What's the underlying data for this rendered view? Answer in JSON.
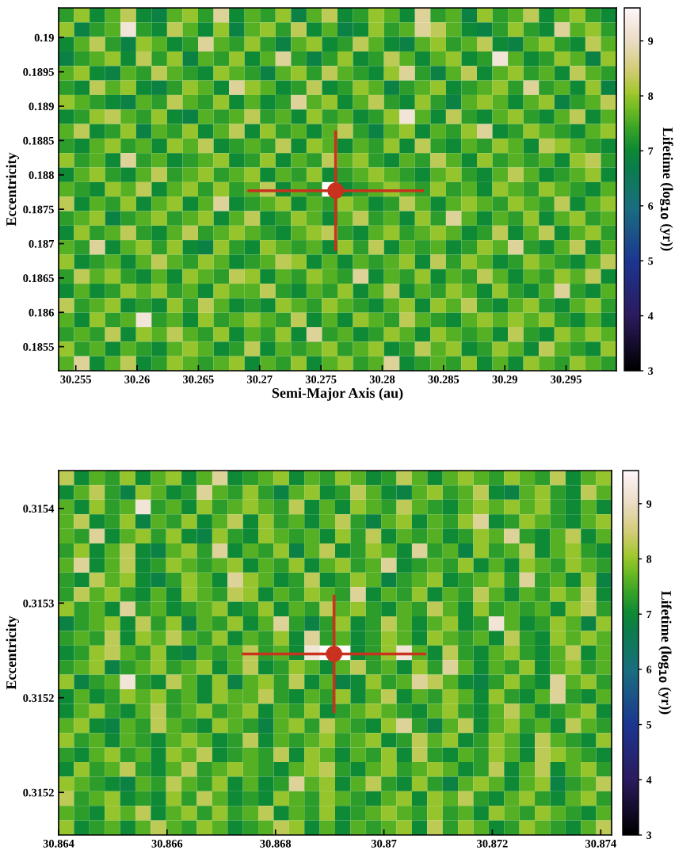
{
  "chart_data": [
    {
      "type": "heatmap",
      "xlabel": "Semi-Major Axis (au)",
      "ylabel": "Eccentricity",
      "clabel": "Lifetime (log$_{10}$ (yr))",
      "xlim": [
        30.2536,
        30.2991
      ],
      "xticks": [
        30.255,
        30.26,
        30.265,
        30.27,
        30.275,
        30.28,
        30.285,
        30.29,
        30.295
      ],
      "ylim": [
        0.18515,
        0.19043
      ],
      "yticks": [
        0.1855,
        0.186,
        0.1865,
        0.187,
        0.1875,
        0.188,
        0.1885,
        0.189,
        0.1895,
        0.19
      ],
      "clim": [
        3,
        9.6
      ],
      "cticks": [
        3,
        4,
        5,
        6,
        7,
        8,
        9
      ],
      "series": [
        {
          "type": "scatter",
          "marker": "circle",
          "color": "#c8321e",
          "x": [
            30.2762
          ],
          "values": [
            0.18777
          ],
          "xerrors": [
            0.0072
          ],
          "errors": [
            0.00088
          ]
        }
      ],
      "cells": [
        [
          7.3,
          8,
          7,
          7.6,
          8.3,
          7,
          6.8,
          7.6,
          8,
          7.3,
          8.7,
          7,
          7.6,
          7.3,
          8,
          6.8,
          7.6,
          8.3,
          7,
          7.3,
          8,
          7.6,
          7,
          8.7,
          7.3,
          7.6,
          6.8,
          8,
          7.3,
          7.6,
          8.3,
          7,
          7.6,
          8,
          7.3,
          7
        ],
        [
          8,
          6.8,
          7.3,
          7.6,
          9.2,
          7.3,
          7,
          8.3,
          7.6,
          7,
          8,
          6.8,
          7.6,
          8,
          7.3,
          8.3,
          7,
          7.6,
          6.8,
          7,
          8,
          7.3,
          7.6,
          8.7,
          8.3,
          7.6,
          7,
          6.8,
          7.3,
          8,
          7.3,
          7,
          8.7,
          7.6,
          8,
          7.3
        ],
        [
          7,
          7.6,
          8.3,
          7.3,
          6.8,
          8,
          7.6,
          7,
          7.3,
          8.7,
          7.6,
          7.3,
          8,
          7.3,
          6.8,
          7.6,
          8,
          7,
          7.3,
          8.3,
          7.6,
          7,
          6.8,
          7.6,
          8,
          7.3,
          7.6,
          8.3,
          7,
          6.8,
          7.6,
          8,
          7.3,
          7,
          8.3,
          7.6
        ],
        [
          6.8,
          7.3,
          7.6,
          8,
          7,
          8.3,
          7.3,
          8,
          6.8,
          7.6,
          7.3,
          8,
          7,
          7.6,
          8.7,
          7.3,
          6.8,
          7.3,
          8,
          7,
          7.3,
          8.3,
          7.6,
          7,
          7.6,
          8,
          7,
          7.3,
          9.2,
          7.6,
          7,
          7.3,
          8,
          7.6,
          6.8,
          8
        ],
        [
          7.6,
          8,
          7,
          6.8,
          7.6,
          7.3,
          8.3,
          7.6,
          7.3,
          7,
          8,
          7.6,
          7.3,
          6.8,
          7.6,
          8,
          7.3,
          8.3,
          7.6,
          7.3,
          7,
          8,
          8.7,
          7.3,
          6.8,
          7.6,
          8.3,
          7,
          7.6,
          8,
          7.3,
          7.6,
          7,
          8.3,
          7.6,
          7.3
        ],
        [
          7.3,
          7,
          8.3,
          7.6,
          8,
          7,
          6.8,
          7.3,
          8,
          7.6,
          7,
          8.7,
          8,
          7.6,
          7,
          7.3,
          8.3,
          7,
          7.3,
          8,
          7.6,
          6.8,
          7.3,
          7.6,
          8,
          7,
          7.3,
          7.6,
          8,
          7.3,
          8.7,
          7.3,
          7.6,
          7,
          8,
          6.8
        ],
        [
          8,
          7.6,
          7.3,
          7,
          6.8,
          7.6,
          7.3,
          8.3,
          7.6,
          7.3,
          8,
          7,
          7.6,
          7,
          7.3,
          8.7,
          7.6,
          8,
          7,
          7.6,
          8.3,
          7.3,
          7,
          8,
          7.3,
          6.8,
          7.6,
          8,
          7.6,
          7,
          7.6,
          8,
          6.8,
          7.3,
          7.6,
          8.3
        ],
        [
          7,
          7.3,
          8,
          8.3,
          7.6,
          7.3,
          8,
          7,
          6.8,
          7.6,
          7.3,
          7.6,
          8.3,
          7.3,
          7.6,
          7,
          8,
          7.3,
          7.6,
          7,
          7.3,
          8,
          9.2,
          7.6,
          7,
          8.3,
          7.3,
          7,
          7.6,
          8,
          7.3,
          7,
          7.6,
          8.3,
          7,
          7.6
        ],
        [
          7.6,
          8.3,
          7,
          7.3,
          8,
          6.8,
          7.6,
          7.3,
          8,
          7,
          7.6,
          8.3,
          7,
          8,
          7.3,
          7.6,
          7,
          7.6,
          8.3,
          7.3,
          6.8,
          7.6,
          8,
          7,
          7.6,
          7.3,
          8,
          8.7,
          7,
          7.3,
          8,
          7.6,
          7.3,
          7,
          7.6,
          8
        ],
        [
          7.3,
          7,
          7.6,
          8,
          7.3,
          7.6,
          7,
          8,
          7.6,
          8.3,
          7,
          7.3,
          7.6,
          7.3,
          8.3,
          7,
          8,
          7.6,
          7,
          7.6,
          7.3,
          8,
          7,
          8.3,
          7.3,
          7,
          7.6,
          7.3,
          8,
          7.6,
          7,
          8.3,
          8,
          7.6,
          7.3,
          7
        ],
        [
          8,
          7.3,
          7.6,
          7,
          8.7,
          7.3,
          7.6,
          7,
          7.3,
          7.6,
          8,
          7,
          7.3,
          8,
          7,
          7.6,
          7.3,
          8.3,
          7.6,
          8,
          7.3,
          7,
          7.6,
          7.3,
          8.3,
          7.6,
          7,
          8,
          7.3,
          7.6,
          7.3,
          7.6,
          7,
          8,
          8.3,
          7.3
        ],
        [
          7,
          7.6,
          8,
          7.3,
          7,
          7.6,
          8.3,
          7.3,
          7.6,
          8,
          7.3,
          7.6,
          8,
          7,
          7.6,
          7.3,
          8,
          7,
          7.3,
          7.6,
          8,
          7.6,
          7.3,
          7,
          7.6,
          8,
          7.3,
          7,
          7.6,
          8.3,
          7.6,
          7,
          7.3,
          7.6,
          8,
          7
        ],
        [
          7.6,
          7.3,
          7,
          8,
          7.6,
          8.3,
          7,
          7.6,
          8,
          7.3,
          8,
          7.3,
          7.6,
          8.3,
          7,
          7.6,
          7.3,
          null,
          7,
          7.3,
          7.6,
          8,
          7.6,
          7.3,
          8,
          7.3,
          7.6,
          7,
          8,
          7.6,
          7.3,
          8,
          7.6,
          7.3,
          7,
          7.6
        ],
        [
          8.3,
          7,
          7.6,
          7.3,
          8,
          7,
          7.6,
          8,
          7,
          7.6,
          8.7,
          7,
          7.3,
          7.6,
          8,
          7,
          7.6,
          7.3,
          8,
          7.6,
          7,
          7.3,
          8.3,
          7.6,
          7,
          7.6,
          8,
          7.6,
          7.3,
          8,
          7.6,
          7.3,
          8.3,
          7,
          7.6,
          8
        ],
        [
          7.3,
          7.6,
          8,
          6.8,
          7.3,
          7.6,
          8,
          7.3,
          7.6,
          8,
          7,
          7.6,
          8.3,
          7,
          7.3,
          8,
          7.6,
          7,
          7.6,
          8.3,
          7.3,
          7.6,
          7,
          8,
          7.3,
          8.7,
          7.6,
          7,
          7.6,
          7.3,
          8,
          7,
          7.6,
          8,
          7.3,
          7.6
        ],
        [
          7,
          8,
          7.3,
          7.6,
          8.3,
          7.3,
          7,
          7.6,
          8.3,
          7.3,
          7.6,
          8,
          7.6,
          7.3,
          7,
          7.6,
          8,
          8.3,
          7.3,
          7,
          7.6,
          8,
          7.3,
          7.6,
          8,
          7.6,
          7,
          7.3,
          8.3,
          7,
          7.6,
          8.3,
          7,
          7.6,
          8,
          7.3
        ],
        [
          7.6,
          7.3,
          8.7,
          7,
          7.6,
          8,
          7.3,
          8,
          7,
          6.8,
          8,
          7.3,
          7,
          8,
          7.6,
          7.3,
          7.6,
          7,
          8,
          7.3,
          8.3,
          7,
          7.6,
          7.3,
          7.6,
          7,
          7.3,
          8,
          7.6,
          8.7,
          7.3,
          7,
          7.6,
          8.3,
          7,
          7.6
        ],
        [
          8,
          7,
          7.3,
          7.6,
          7,
          7.6,
          8.3,
          7.6,
          7.3,
          8,
          7.6,
          7,
          7.3,
          7.6,
          8.3,
          8,
          7,
          7.6,
          7,
          7.6,
          7.3,
          7.6,
          8,
          7,
          8.3,
          7.3,
          8,
          7.6,
          7,
          7.3,
          8,
          7.6,
          7.3,
          7,
          7.6,
          8.3
        ],
        [
          7.3,
          8.3,
          7.6,
          8,
          7.3,
          7,
          7.6,
          7,
          8,
          7.6,
          7.3,
          8.3,
          8,
          7,
          7.6,
          7.3,
          8,
          7.6,
          7.3,
          8.7,
          7,
          7.6,
          7.3,
          8,
          7,
          7.6,
          7.3,
          8.3,
          7.6,
          7,
          7.6,
          7.3,
          8,
          7.6,
          8.3,
          7
        ],
        [
          7,
          7.6,
          7,
          7.3,
          8,
          7.6,
          8,
          7.3,
          7.6,
          7,
          8,
          7.6,
          7.6,
          8.3,
          7.3,
          7,
          7.6,
          7.3,
          8,
          7,
          7.6,
          8.3,
          7,
          7.6,
          7.3,
          8,
          7.6,
          7,
          8,
          7.3,
          7,
          7.6,
          8.7,
          7.3,
          7,
          7.6
        ],
        [
          8.3,
          7.3,
          7.6,
          8,
          7,
          7.3,
          7,
          8,
          7.3,
          8.3,
          7.6,
          7,
          7.3,
          7,
          8,
          7.6,
          7.3,
          8,
          7.6,
          7.3,
          7,
          7.6,
          8,
          7,
          8,
          7.6,
          8.3,
          7.3,
          7,
          7.6,
          8,
          7.3,
          7,
          7.6,
          8,
          7.3
        ],
        [
          7.6,
          7,
          8,
          7.3,
          7.6,
          9.2,
          7.3,
          7.6,
          7,
          8,
          7.3,
          7.6,
          8,
          7.6,
          7.3,
          8.3,
          7,
          7.6,
          7,
          8,
          7.6,
          7.3,
          8.3,
          7.6,
          7.3,
          7,
          7.6,
          8,
          7.6,
          8,
          7.6,
          8,
          7.3,
          7,
          7.6,
          7
        ],
        [
          7.3,
          7.6,
          7.3,
          8.3,
          7,
          8,
          7.6,
          8.3,
          7.6,
          7.3,
          8,
          7,
          7.6,
          7.3,
          8,
          7,
          8.7,
          7.3,
          7.6,
          7,
          7.3,
          8,
          7.6,
          7,
          8,
          7.6,
          7.3,
          7.6,
          7,
          8.3,
          7.3,
          7,
          8,
          7.6,
          8,
          7.6
        ],
        [
          8,
          7.3,
          7.6,
          7,
          7.6,
          7.3,
          7,
          7.6,
          8,
          7.6,
          7,
          7.3,
          8.3,
          7,
          7.6,
          7.3,
          7.6,
          8,
          7.3,
          7.6,
          8,
          7,
          7.3,
          8.3,
          7.6,
          8,
          7,
          7.3,
          8,
          7.6,
          7,
          8.3,
          7.6,
          7.3,
          7,
          8
        ],
        [
          7.6,
          8.7,
          7,
          7.6,
          8.3,
          7,
          7.3,
          8,
          7.6,
          7.3,
          7.6,
          8,
          7,
          7.6,
          7.3,
          8,
          7,
          7.6,
          8,
          7.3,
          7.6,
          8.7,
          7,
          7.3,
          7.6,
          7.3,
          8,
          7,
          7.6,
          7,
          8,
          7.6,
          7.3,
          8,
          7.6,
          7.3
        ]
      ]
    },
    {
      "type": "heatmap",
      "ylabel": "Eccentricity",
      "clabel": "Lifetime (log$_{10}$ (yr))",
      "xlim": [
        30.864,
        30.8742
      ],
      "xticks": [
        30.864,
        30.866,
        30.868,
        30.87,
        30.872,
        30.874
      ],
      "ylim": [
        0.315124,
        0.315432
      ],
      "yticks": [
        {
          "value": 0.31516,
          "label": "0.3152"
        },
        {
          "value": 0.31524,
          "label": "0.3152"
        },
        {
          "value": 0.31532,
          "label": "0.3153"
        },
        {
          "value": 0.3154,
          "label": "0.3154"
        }
      ],
      "clim": [
        3,
        9.6
      ],
      "cticks": [
        3,
        4,
        5,
        6,
        7,
        8,
        9
      ],
      "series": [
        {
          "type": "scatter",
          "marker": "circle",
          "color": "#c8321e",
          "x": [
            30.86908
          ],
          "values": [
            0.315277
          ],
          "xerrors": [
            0.0017
          ],
          "errors": [
            5e-05
          ]
        }
      ],
      "cells": [
        [
          8.3,
          7,
          7.6,
          7.3,
          8,
          7,
          7.6,
          8,
          7,
          7.6,
          8.7,
          7,
          7.3,
          7.6,
          8,
          7,
          7.6,
          7.3,
          8,
          7.6,
          7,
          7.3,
          8.3,
          7.6,
          7,
          7.6,
          8,
          7.6,
          7.3,
          8,
          7.6,
          7.3,
          8.3,
          7,
          7.6,
          8
        ],
        [
          7,
          7.6,
          8.3,
          7.3,
          6.8,
          8,
          7.6,
          7,
          7.3,
          8.7,
          7.6,
          7.3,
          8,
          7.3,
          6.8,
          7.6,
          8,
          7,
          7.3,
          8.3,
          7.6,
          7,
          6.8,
          7.6,
          8,
          7.3,
          7.6,
          8.3,
          7,
          6.8,
          7.6,
          8,
          7.3,
          7,
          8.3,
          7.6
        ],
        [
          7.6,
          7,
          8,
          7.3,
          7.6,
          9.2,
          7.3,
          7.6,
          7,
          8,
          7.3,
          7.6,
          8,
          7.6,
          7.3,
          8.3,
          7,
          7.6,
          7,
          8,
          7.6,
          7.3,
          8.3,
          7.6,
          7.3,
          7,
          7.6,
          8,
          7.6,
          8,
          7.6,
          8,
          7.3,
          7,
          7.6,
          7
        ],
        [
          7.6,
          8.3,
          7,
          7.3,
          8,
          6.8,
          7.6,
          7.3,
          8,
          7,
          7.6,
          8.3,
          7,
          8,
          7.3,
          7.6,
          7,
          7.6,
          8.3,
          7.3,
          6.8,
          7.6,
          8,
          7,
          7.6,
          7.3,
          8,
          8.7,
          7,
          7.3,
          8,
          7.6,
          7.3,
          7,
          7.6,
          8
        ],
        [
          7.6,
          7.3,
          8.7,
          7,
          7.6,
          8,
          7.3,
          8,
          7,
          6.8,
          8,
          7.3,
          7,
          8,
          7.6,
          7.3,
          7.6,
          7,
          8,
          7.3,
          8.3,
          7,
          7.6,
          7.3,
          7.6,
          7,
          7.3,
          8,
          7.6,
          8.7,
          7.3,
          7,
          7.6,
          8.3,
          7,
          7.6
        ],
        [
          7.3,
          8,
          7,
          7.6,
          8.3,
          7,
          6.8,
          7.6,
          8,
          7.3,
          8.7,
          7,
          7.6,
          7.3,
          8,
          6.8,
          7.6,
          8.3,
          7,
          7.3,
          8,
          7.6,
          7,
          8.7,
          7.3,
          7.6,
          6.8,
          8,
          7.3,
          7.6,
          8.3,
          7,
          7.6,
          8,
          7.3,
          7
        ],
        [
          7.6,
          8.7,
          7,
          7.6,
          8.3,
          7,
          7.3,
          8,
          7.6,
          7.3,
          7.6,
          8,
          7,
          7.6,
          7.3,
          8,
          7,
          7.6,
          8,
          7.3,
          7.6,
          8.7,
          7,
          7.3,
          7.6,
          7.3,
          8,
          7,
          7.6,
          7,
          8,
          7.6,
          7.3,
          8,
          7.6,
          7.3
        ],
        [
          7.3,
          7,
          8.3,
          7.6,
          8,
          7,
          6.8,
          7.3,
          8,
          7.6,
          7,
          8.7,
          8,
          7.6,
          7,
          7.3,
          8.3,
          7,
          7.3,
          8,
          7.6,
          6.8,
          7.3,
          7.6,
          8,
          7,
          7.3,
          7.6,
          8,
          7.3,
          8.7,
          7.3,
          7.6,
          7,
          8,
          6.8
        ],
        [
          7.3,
          8.3,
          7.6,
          8,
          7.3,
          7,
          7.6,
          7,
          8,
          7.6,
          7.3,
          8.3,
          8,
          7,
          7.6,
          7.3,
          8,
          7.6,
          7.3,
          8.7,
          7,
          7.6,
          7.3,
          8,
          7,
          7.6,
          7.3,
          8.3,
          7.6,
          7,
          7.6,
          7.3,
          8,
          7.6,
          8.3,
          7
        ],
        [
          8,
          7.3,
          7.6,
          7,
          8.7,
          7.3,
          7.6,
          7,
          7.3,
          7.6,
          8,
          7,
          7.3,
          8,
          7,
          7.6,
          7.3,
          8.3,
          7.6,
          8,
          7.3,
          7,
          7.6,
          7.3,
          8.3,
          7.6,
          7,
          8,
          7.3,
          7.6,
          7.3,
          7.6,
          7,
          8,
          8.3,
          7.3
        ],
        [
          6.8,
          7.3,
          7.6,
          8,
          7,
          8.3,
          7.3,
          8,
          6.8,
          7.6,
          7.3,
          8,
          7,
          7.6,
          8.7,
          7.3,
          6.8,
          7.3,
          8,
          7,
          7.3,
          8.3,
          7.6,
          7,
          7.6,
          8,
          7,
          7.3,
          9.2,
          7.6,
          7,
          7.3,
          8,
          7.6,
          6.8,
          8
        ],
        [
          7.3,
          7.6,
          7.3,
          8.3,
          7,
          8,
          7.6,
          8.3,
          7.6,
          7.3,
          8,
          7,
          7.6,
          7.3,
          8,
          7,
          8.7,
          7.3,
          7.6,
          7,
          7.3,
          8,
          7.6,
          7,
          8,
          7.6,
          7.3,
          7.6,
          7,
          8.3,
          7.3,
          7,
          8,
          7.6,
          8,
          7.6
        ],
        [
          7,
          7.3,
          8,
          8.3,
          7.6,
          7.3,
          8,
          7,
          6.8,
          7.6,
          7.3,
          7.6,
          8.3,
          7.3,
          7.6,
          7,
          9.2,
          null,
          null,
          7,
          7.3,
          8,
          9.2,
          7.6,
          7,
          8.3,
          7.3,
          7,
          7.6,
          8,
          7.3,
          7,
          7.6,
          8.3,
          7,
          7.6
        ],
        [
          7.3,
          7.6,
          8,
          6.8,
          7.3,
          7.6,
          8,
          7.3,
          7.6,
          8,
          7,
          7.6,
          8.3,
          7,
          7.3,
          8,
          7.6,
          7,
          7.6,
          8.3,
          7.3,
          7.6,
          7,
          8,
          7.3,
          8.7,
          7.6,
          7,
          7.6,
          7.3,
          8,
          7,
          7.6,
          8,
          7.3,
          7.6
        ],
        [
          8,
          6.8,
          7.3,
          7.6,
          9.2,
          7.3,
          7,
          8.3,
          7.6,
          7,
          8,
          6.8,
          7.6,
          8,
          7.3,
          8.3,
          7,
          7.6,
          6.8,
          7,
          8,
          7.3,
          7.6,
          8.7,
          8.3,
          7.6,
          7,
          6.8,
          7.3,
          8,
          7.3,
          7,
          8.7,
          7.6,
          8,
          7.3
        ],
        [
          7,
          7.6,
          7,
          7.3,
          8,
          7.6,
          8,
          7.3,
          7.6,
          7,
          8,
          7.6,
          7.6,
          8.3,
          7.3,
          7,
          7.6,
          7.3,
          8,
          7,
          7.6,
          8.3,
          7,
          7.6,
          7.3,
          8,
          7.6,
          7,
          8,
          7.3,
          7,
          7.6,
          8.7,
          7.3,
          7,
          7.6
        ],
        [
          7,
          7.6,
          8,
          7.3,
          7,
          7.6,
          8.3,
          7.3,
          7.6,
          8,
          7.3,
          7.6,
          8,
          7,
          7.6,
          7.3,
          8,
          7,
          7.3,
          7.6,
          8,
          7.6,
          7.3,
          7,
          7.6,
          8,
          7.3,
          7,
          7.6,
          8.3,
          7.6,
          7,
          7.3,
          7.6,
          8,
          7
        ],
        [
          7.6,
          8,
          7,
          6.8,
          7.6,
          7.3,
          8.3,
          7.6,
          7.3,
          7,
          8,
          7.6,
          7.3,
          6.8,
          7.6,
          8,
          7.3,
          8.3,
          7.6,
          7.3,
          7,
          8,
          8.7,
          7.3,
          6.8,
          7.6,
          8.3,
          7,
          7.6,
          8,
          7.3,
          7.6,
          7,
          8.3,
          7.6,
          7.3
        ],
        [
          8,
          7.3,
          7.6,
          7,
          7.6,
          7.3,
          7,
          7.6,
          8,
          7.6,
          7,
          7.3,
          8.3,
          7,
          7.6,
          7.3,
          7.6,
          8,
          7.3,
          7.6,
          8,
          7,
          7.3,
          8.3,
          7.6,
          8,
          7,
          7.3,
          8,
          7.6,
          7,
          8.3,
          7.6,
          7.3,
          7,
          8
        ],
        [
          7.3,
          7,
          7.6,
          8,
          7.3,
          7.6,
          7,
          8,
          7.6,
          8.3,
          7,
          7.3,
          7.6,
          7.3,
          8.3,
          7,
          8,
          7.6,
          7,
          7.6,
          7.3,
          8,
          7,
          8.3,
          7.3,
          7,
          7.6,
          7.3,
          8,
          7.6,
          7,
          8.3,
          8,
          7.6,
          7.3,
          7
        ],
        [
          7,
          8,
          7.3,
          7.6,
          8.3,
          7.3,
          7,
          7.6,
          8.3,
          7.3,
          7.6,
          8,
          7.6,
          7.3,
          7,
          7.6,
          8,
          8.3,
          7.3,
          7,
          7.6,
          8,
          7.3,
          7.6,
          8,
          7.6,
          7,
          7.3,
          8.3,
          7,
          7.6,
          8.3,
          7,
          7.6,
          8,
          7.3
        ],
        [
          8,
          7.6,
          7.3,
          7,
          6.8,
          7.6,
          7.3,
          8.3,
          7.6,
          7.3,
          8,
          7,
          7.6,
          7,
          7.3,
          8.7,
          7.6,
          8,
          7,
          7.6,
          8.3,
          7.3,
          7,
          8,
          7.3,
          6.8,
          7.6,
          8,
          7.6,
          7,
          7.6,
          8,
          6.8,
          7.3,
          7.6,
          8.3
        ],
        [
          8.3,
          7.3,
          7.6,
          8,
          7,
          7.3,
          7,
          8,
          7.3,
          8.3,
          7.6,
          7,
          7.3,
          7,
          8,
          7.6,
          7.3,
          8,
          7.6,
          7.3,
          7,
          7.6,
          8,
          7,
          8,
          7.6,
          8.3,
          7.3,
          7,
          7.6,
          8,
          7.3,
          7,
          7.6,
          8,
          7.3
        ],
        [
          7.6,
          7.3,
          7,
          8,
          7.6,
          8.3,
          7,
          7.6,
          8,
          7.3,
          8,
          7.3,
          7.6,
          8.3,
          7,
          7.6,
          7.3,
          8,
          7,
          7.3,
          7.6,
          8,
          7.6,
          7.3,
          8,
          7.3,
          7.6,
          7,
          8,
          7.6,
          7.3,
          8,
          7.6,
          7.3,
          7,
          7.6
        ],
        [
          8,
          7,
          7.3,
          7.6,
          7,
          7.6,
          8.3,
          7.6,
          7.3,
          8,
          7.6,
          7,
          7.3,
          7.6,
          8.3,
          8,
          7,
          7.6,
          7,
          7.6,
          7.3,
          7.6,
          8,
          7,
          8.3,
          7.3,
          8,
          7.6,
          7,
          7.3,
          8,
          7.6,
          7.3,
          7,
          7.6,
          8.3
        ]
      ]
    }
  ]
}
